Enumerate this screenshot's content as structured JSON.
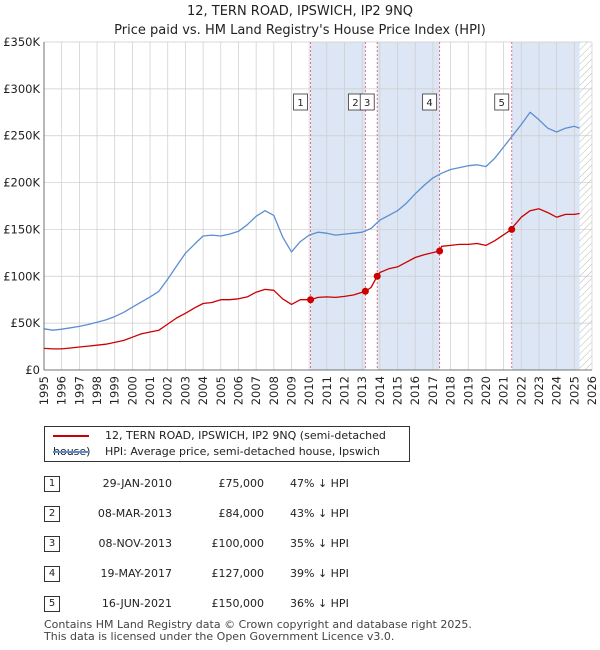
{
  "chart_data": {
    "type": "line",
    "title": "12, TERN ROAD, IPSWICH, IP2 9NQ",
    "subtitle": "Price paid vs. HM Land Registry's House Price Index (HPI)",
    "xlim": [
      1995,
      2026
    ],
    "ylim": [
      0,
      350000
    ],
    "x_ticks": [
      1995,
      1996,
      1997,
      1998,
      1999,
      2000,
      2001,
      2002,
      2003,
      2004,
      2005,
      2006,
      2007,
      2008,
      2009,
      2010,
      2011,
      2012,
      2013,
      2014,
      2015,
      2016,
      2017,
      2018,
      2019,
      2020,
      2021,
      2022,
      2023,
      2024,
      2025,
      2026
    ],
    "y_ticks": [
      {
        "value": 0,
        "label": "£0"
      },
      {
        "value": 50000,
        "label": "£50K"
      },
      {
        "value": 100000,
        "label": "£100K"
      },
      {
        "value": 150000,
        "label": "£150K"
      },
      {
        "value": 200000,
        "label": "£200K"
      },
      {
        "value": 250000,
        "label": "£250K"
      },
      {
        "value": 300000,
        "label": "£300K"
      },
      {
        "value": 350000,
        "label": "£350K"
      }
    ],
    "series": [
      {
        "name": "12, TERN ROAD, IPSWICH, IP2 9NQ (semi-detached house)",
        "color": "#cc0000",
        "x": [
          1995,
          1995.5,
          1996,
          1996.5,
          1997,
          1997.5,
          1998,
          1998.5,
          1999,
          1999.5,
          2000,
          2000.5,
          2001,
          2001.5,
          2002,
          2002.5,
          2003,
          2003.5,
          2004,
          2004.5,
          2005,
          2005.5,
          2006,
          2006.5,
          2007,
          2007.5,
          2008,
          2008.5,
          2009,
          2009.5,
          2010.08,
          2010.5,
          2011,
          2011.5,
          2012,
          2012.5,
          2013.18,
          2013.5,
          2013.85,
          2014,
          2014.5,
          2015,
          2015.5,
          2016,
          2016.5,
          2017.38,
          2017.5,
          2018,
          2018.5,
          2019,
          2019.5,
          2020,
          2020.5,
          2021.46,
          2021.5,
          2022,
          2022.5,
          2023,
          2023.5,
          2024,
          2024.5,
          2025,
          2025.3
        ],
        "values": [
          23000,
          22500,
          22500,
          23500,
          24500,
          25500,
          26500,
          27500,
          29500,
          31500,
          35000,
          38500,
          40500,
          42500,
          49000,
          55500,
          60500,
          66000,
          71000,
          72000,
          75000,
          75000,
          76000,
          78000,
          83000,
          86000,
          85000,
          76000,
          70000,
          75000,
          75000,
          77500,
          78000,
          77500,
          78500,
          80000,
          84000,
          88000,
          100000,
          104000,
          108000,
          110000,
          115000,
          120000,
          123000,
          127000,
          132000,
          133000,
          134000,
          134000,
          135000,
          133000,
          138000,
          150000,
          152000,
          163000,
          170000,
          172000,
          168000,
          163000,
          166000,
          166000,
          167000
        ]
      },
      {
        "name": "HPI: Average price, semi-detached house, Ipswich",
        "color": "#5b8fd0",
        "x": [
          1995,
          1995.5,
          1996,
          1996.5,
          1997,
          1997.5,
          1998,
          1998.5,
          1999,
          1999.5,
          2000,
          2000.5,
          2001,
          2001.5,
          2002,
          2002.5,
          2003,
          2003.5,
          2004,
          2004.5,
          2005,
          2005.5,
          2006,
          2006.5,
          2007,
          2007.5,
          2008,
          2008.5,
          2009,
          2009.5,
          2010,
          2010.5,
          2011,
          2011.5,
          2012,
          2012.5,
          2013,
          2013.5,
          2014,
          2014.5,
          2015,
          2015.5,
          2016,
          2016.5,
          2017,
          2017.5,
          2018,
          2018.5,
          2019,
          2019.5,
          2020,
          2020.5,
          2021,
          2021.5,
          2022,
          2022.5,
          2023,
          2023.5,
          2024,
          2024.5,
          2025,
          2025.3
        ],
        "values": [
          44000,
          42500,
          43500,
          45000,
          46500,
          48500,
          51000,
          53500,
          57000,
          61500,
          67000,
          72500,
          78000,
          84000,
          97000,
          111000,
          124500,
          134000,
          143000,
          144000,
          143000,
          145000,
          148000,
          155000,
          164000,
          170000,
          165000,
          142000,
          126000,
          137000,
          144000,
          147000,
          146000,
          144000,
          145000,
          146000,
          147000,
          151000,
          160000,
          165000,
          170000,
          178000,
          188000,
          197000,
          205000,
          210000,
          214000,
          216000,
          218000,
          219000,
          217000,
          226000,
          238000,
          250000,
          262000,
          275000,
          267000,
          258000,
          254000,
          258000,
          260000,
          258000
        ]
      }
    ],
    "sales": [
      {
        "num": "1",
        "x": 2010.08,
        "value": 75000,
        "date": "29-JAN-2010",
        "price": "£75,000",
        "hpi": "47% ↓ HPI"
      },
      {
        "num": "2",
        "x": 2013.18,
        "value": 84000,
        "date": "08-MAR-2013",
        "price": "£84,000",
        "hpi": "43% ↓ HPI"
      },
      {
        "num": "3",
        "x": 2013.85,
        "value": 100000,
        "date": "08-NOV-2013",
        "price": "£100,000",
        "hpi": "35% ↓ HPI"
      },
      {
        "num": "4",
        "x": 2017.38,
        "value": 127000,
        "date": "19-MAY-2017",
        "price": "£127,000",
        "hpi": "39% ↓ HPI"
      },
      {
        "num": "5",
        "x": 2021.46,
        "value": 150000,
        "date": "16-JUN-2021",
        "price": "£150,000",
        "hpi": "36% ↓ HPI"
      }
    ],
    "shaded_ranges": [
      [
        2010.08,
        2013.18
      ],
      [
        2013.85,
        2017.38
      ],
      [
        2021.46,
        2025.3
      ]
    ],
    "future_hatch_from": 2025.3
  },
  "legend": {
    "property_label": "12, TERN ROAD, IPSWICH, IP2 9NQ (semi-detached house)",
    "hpi_label": "HPI: Average price, semi-detached house, Ipswich"
  },
  "colors": {
    "property": "#cc0000",
    "hpi": "#5b8fd0",
    "shade": "#dde6f4",
    "grid": "#cccccc",
    "vline": "#e06070"
  },
  "footer": {
    "line1": "Contains HM Land Registry data © Crown copyright and database right 2025.",
    "line2": "This data is licensed under the Open Government Licence v3.0."
  }
}
